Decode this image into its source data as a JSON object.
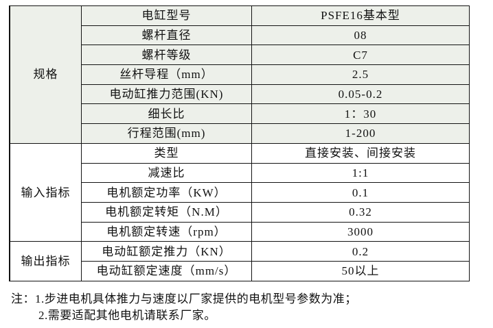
{
  "groups": [
    {
      "label": "规格",
      "rows": [
        {
          "param": "电缸型号",
          "value": "PSFE16基本型"
        },
        {
          "param": "螺杆直径",
          "value": "08"
        },
        {
          "param": "螺杆等级",
          "value": "C7"
        },
        {
          "param": "丝杆导程（mm）",
          "value": "2.5"
        },
        {
          "param": "电动缸推力范围(KN)",
          "value": "0.05-0.2"
        },
        {
          "param": "细长比",
          "value": "1：30"
        },
        {
          "param": "行程范围(mm)",
          "value": "1-200"
        }
      ]
    },
    {
      "label": "输入指标",
      "rows": [
        {
          "param": "类型",
          "value": "直接安装、间接安装"
        },
        {
          "param": "减速比",
          "value": "1:1"
        },
        {
          "param": "电机额定功率（KW）",
          "value": "0.1"
        },
        {
          "param": "电机额定转矩（N.M）",
          "value": "0.32"
        },
        {
          "param": "电机额定转速（rpm）",
          "value": "3000"
        }
      ]
    },
    {
      "label": "输出指标",
      "rows": [
        {
          "param": "电动缸额定推力（KN）",
          "value": "0.2"
        },
        {
          "param": "电动缸额定速度（mm/s）",
          "value": "50以上"
        }
      ]
    }
  ],
  "notes": {
    "line1": "注：1.步进电机具体推力与速度以厂家提供的电机型号参数为准；",
    "line2": "2.需要适配其他电机请联系厂家。"
  },
  "colors": {
    "spec_background": "#edf0ea",
    "border": "#111111"
  }
}
